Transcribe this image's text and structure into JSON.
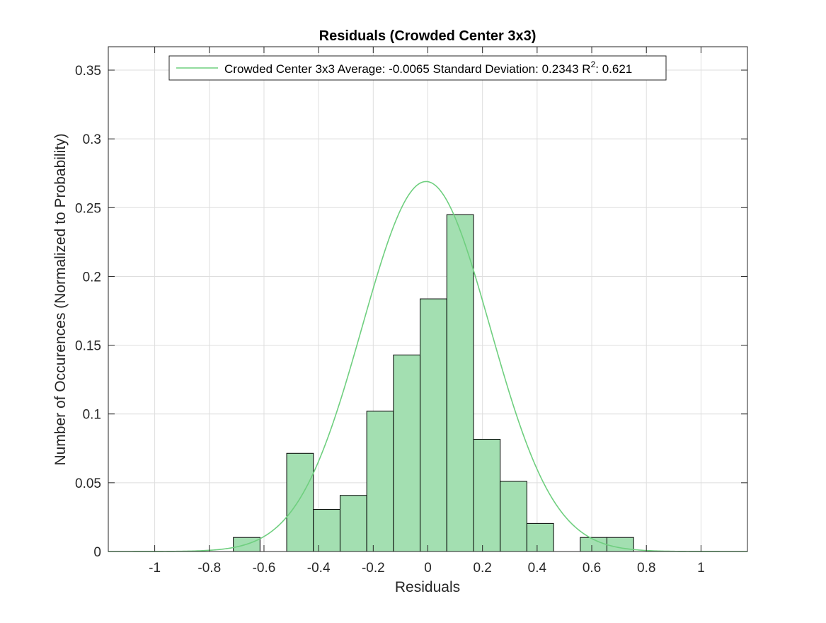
{
  "chart_data": {
    "type": "bar",
    "title": "Residuals (Crowded Center 3x3)",
    "xlabel": "Residuals",
    "ylabel": "Number of Occurences (Normalized to Probability)",
    "xlim": [
      -1.17,
      1.17
    ],
    "ylim": [
      0,
      0.367
    ],
    "xticks": [
      -1,
      -0.8,
      -0.6,
      -0.4,
      -0.2,
      0,
      0.2,
      0.4,
      0.6,
      0.8,
      1
    ],
    "xtick_labels": [
      "-1",
      "-0.8",
      "-0.6",
      "-0.4",
      "-0.2",
      "0",
      "0.2",
      "0.4",
      "0.6",
      "0.8",
      "1"
    ],
    "yticks": [
      0,
      0.05,
      0.1,
      0.15,
      0.2,
      0.25,
      0.3,
      0.35
    ],
    "ytick_labels": [
      "0",
      "0.05",
      "0.1",
      "0.15",
      "0.2",
      "0.25",
      "0.3",
      "0.35"
    ],
    "grid": true,
    "bin_width": 0.0977,
    "bins": [
      {
        "left": -0.7122,
        "value": 0.0102
      },
      {
        "left": -0.6145,
        "value": 0.0
      },
      {
        "left": -0.5168,
        "value": 0.0714
      },
      {
        "left": -0.4191,
        "value": 0.0306
      },
      {
        "left": -0.3214,
        "value": 0.0408
      },
      {
        "left": -0.2237,
        "value": 0.102
      },
      {
        "left": -0.126,
        "value": 0.1429
      },
      {
        "left": -0.0283,
        "value": 0.1837
      },
      {
        "left": 0.0694,
        "value": 0.2449
      },
      {
        "left": 0.1671,
        "value": 0.0816
      },
      {
        "left": 0.2648,
        "value": 0.051
      },
      {
        "left": 0.3625,
        "value": 0.0204
      },
      {
        "left": 0.4602,
        "value": 0.0
      },
      {
        "left": 0.5579,
        "value": 0.0102
      },
      {
        "left": 0.6556,
        "value": 0.0102
      }
    ],
    "fit": {
      "type": "normal",
      "mean": -0.0065,
      "std": 0.2343,
      "peak": 0.269,
      "color": "#6fcf7f"
    },
    "bar_fill": "#a3dfb1",
    "bar_edge": "#000000",
    "legend": {
      "position": "top",
      "text_main": "Crowded Center 3x3 Average: -0.0065 Standard Deviation: 0.2343 R",
      "text_sup": "2",
      "text_tail": ": 0.621"
    }
  }
}
